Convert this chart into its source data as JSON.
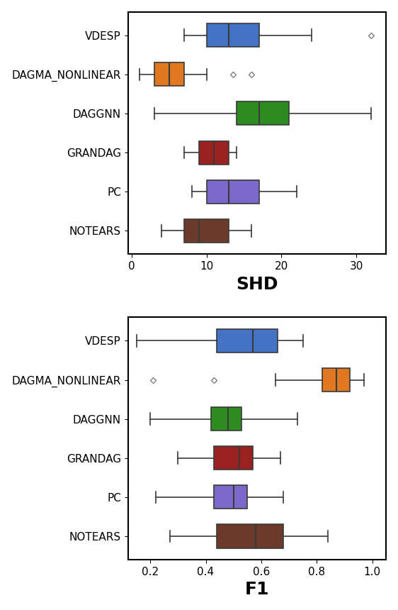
{
  "labels": [
    "VDESP",
    "DAGMA_NONLINEAR",
    "DAGGNN",
    "GRANDAG",
    "PC",
    "NOTEARS"
  ],
  "colors": [
    "#4472c4",
    "#e07820",
    "#2e8b20",
    "#9b2020",
    "#7b68c8",
    "#6b3a2a"
  ],
  "shd": {
    "whislo": [
      7,
      1,
      3,
      7,
      8,
      4
    ],
    "q1": [
      10,
      3,
      14,
      9,
      10,
      7
    ],
    "med": [
      13,
      5,
      17,
      11,
      13,
      9
    ],
    "q3": [
      17,
      7,
      21,
      13,
      17,
      13
    ],
    "whishi": [
      24,
      10,
      32,
      14,
      22,
      16
    ],
    "fliers_x": [
      [
        32
      ],
      [
        13.5,
        16
      ],
      [],
      [],
      [],
      []
    ],
    "fliers_y": [
      [
        5
      ],
      [
        4,
        4
      ],
      [],
      [],
      [],
      []
    ]
  },
  "f1": {
    "whislo": [
      0.15,
      0.65,
      0.2,
      0.3,
      0.22,
      0.27
    ],
    "q1": [
      0.44,
      0.82,
      0.42,
      0.43,
      0.43,
      0.44
    ],
    "med": [
      0.57,
      0.87,
      0.48,
      0.52,
      0.5,
      0.58
    ],
    "q3": [
      0.66,
      0.92,
      0.53,
      0.57,
      0.55,
      0.68
    ],
    "whishi": [
      0.75,
      0.97,
      0.73,
      0.67,
      0.68,
      0.84
    ],
    "fliers_x": [
      [],
      [
        0.21,
        0.43
      ],
      [],
      [],
      [],
      []
    ],
    "fliers_y": [
      [],
      [
        4,
        4
      ],
      [],
      [],
      [],
      []
    ]
  },
  "shd_xlabel": "SHD",
  "f1_xlabel": "F1",
  "shd_xlim": [
    -0.5,
    34
  ],
  "f1_xlim": [
    0.12,
    1.05
  ],
  "shd_xticks": [
    0,
    10,
    20,
    30
  ],
  "f1_xticks": [
    0.2,
    0.4,
    0.6,
    0.8,
    1.0
  ],
  "xlabel_fontsize": 18,
  "tick_fontsize": 11,
  "label_fontsize": 11,
  "box_width": 0.6
}
